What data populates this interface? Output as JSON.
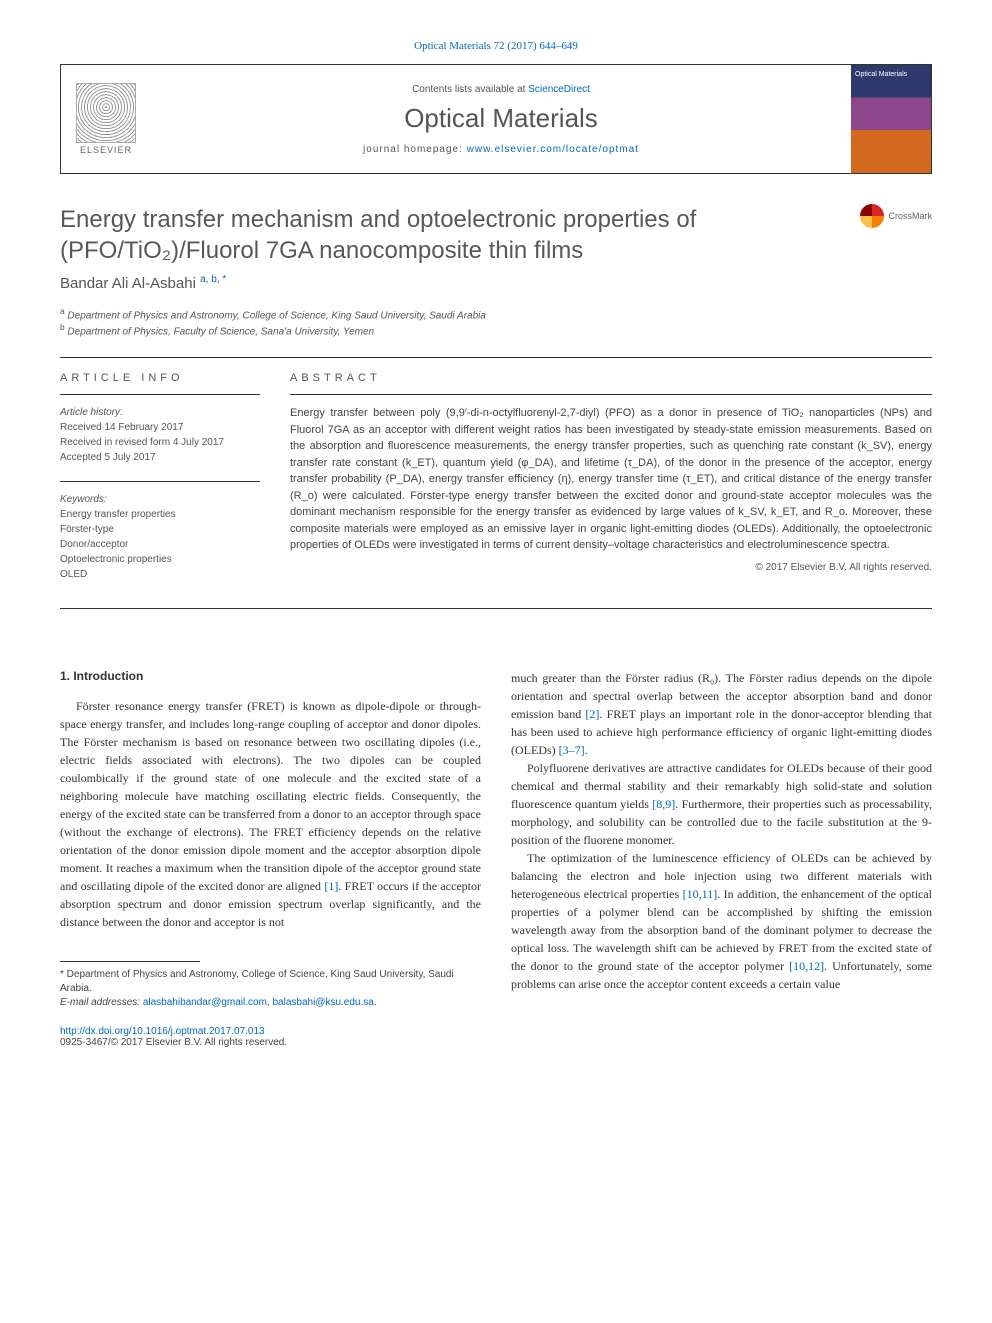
{
  "journalRef": {
    "text": "Optical Materials 72 (2017) 644–649",
    "href": "#"
  },
  "header": {
    "contents_prefix": "Contents lists available at ",
    "contents_link": "ScienceDirect",
    "journal_name": "Optical Materials",
    "homepage_prefix": "journal homepage: ",
    "homepage_link": "www.elsevier.com/locate/optmat",
    "elsevier_label": "ELSEVIER"
  },
  "title": "Energy transfer mechanism and optoelectronic properties of (PFO/TiO₂)/Fluorol 7GA nanocomposite thin films",
  "crossmark_label": "CrossMark",
  "author": {
    "name": "Bandar Ali Al-Asbahi",
    "marks": "a, b, *"
  },
  "affiliations": [
    {
      "mark": "a",
      "text": "Department of Physics and Astronomy, College of Science, King Saud University, Saudi Arabia"
    },
    {
      "mark": "b",
      "text": "Department of Physics, Faculty of Science, Sana'a University, Yemen"
    }
  ],
  "articleInfo": {
    "heading": "article info",
    "history_label": "Article history:",
    "received": "Received 14 February 2017",
    "revised": "Received in revised form 4 July 2017",
    "accepted": "Accepted 5 July 2017",
    "keywords_label": "Keywords:",
    "keywords": [
      "Energy transfer properties",
      "Förster-type",
      "Donor/acceptor",
      "Optoelectronic properties",
      "OLED"
    ]
  },
  "abstract": {
    "heading": "abstract",
    "text": "Energy transfer between poly (9,9′-di-n-octylfluorenyl-2,7-diyl) (PFO) as a donor in presence of TiO₂ nanoparticles (NPs) and Fluorol 7GA as an acceptor with different weight ratios has been investigated by steady-state emission measurements. Based on the absorption and fluorescence measurements, the energy transfer properties, such as quenching rate constant (k_SV), energy transfer rate constant (k_ET), quantum yield (φ_DA), and lifetime (τ_DA), of the donor in the presence of the acceptor, energy transfer probability (P_DA), energy transfer efficiency (η), energy transfer time (τ_ET), and critical distance of the energy transfer (R_o) were calculated. Förster-type energy transfer between the excited donor and ground-state acceptor molecules was the dominant mechanism responsible for the energy transfer as evidenced by large values of k_SV, k_ET, and R_o. Moreover, these composite materials were employed as an emissive layer in organic light-emitting diodes (OLEDs). Additionally, the optoelectronic properties of OLEDs were investigated in terms of current density–voltage characteristics and electroluminescence spectra.",
    "copyright": "© 2017 Elsevier B.V. All rights reserved."
  },
  "intro": {
    "heading": "1. Introduction",
    "col1_p1": "Förster resonance energy transfer (FRET) is known as dipole-dipole or through-space energy transfer, and includes long-range coupling of acceptor and donor dipoles. The Förster mechanism is based on resonance between two oscillating dipoles (i.e., electric fields associated with electrons). The two dipoles can be coupled coulombically if the ground state of one molecule and the excited state of a neighboring molecule have matching oscillating electric fields. Consequently, the energy of the excited state can be transferred from a donor to an acceptor through space (without the exchange of electrons). The FRET efficiency depends on the relative orientation of the donor emission dipole moment and the acceptor absorption dipole moment. It reaches a maximum when the transition dipole of the acceptor ground state and oscillating dipole of the excited donor are aligned ",
    "col1_ref1": "[1]",
    "col1_p1_tail": ". FRET occurs if the acceptor absorption spectrum and donor emission spectrum overlap significantly, and the distance between the donor and acceptor is not",
    "col2_p1": "much greater than the Förster radius (R₀). The Förster radius depends on the dipole orientation and spectral overlap between the acceptor absorption band and donor emission band ",
    "col2_ref2": "[2]",
    "col2_p1_mid": ". FRET plays an important role in the donor-acceptor blending that has been used to achieve high performance efficiency of organic light-emitting diodes (OLEDs) ",
    "col2_ref37": "[3–7]",
    "col2_p1_tail": ".",
    "col2_p2": "Polyfluorene derivatives are attractive candidates for OLEDs because of their good chemical and thermal stability and their remarkably high solid-state and solution fluorescence quantum yields ",
    "col2_ref89": "[8,9]",
    "col2_p2_tail": ". Furthermore, their properties such as processability, morphology, and solubility can be controlled due to the facile substitution at the 9-position of the fluorene monomer.",
    "col2_p3": "The optimization of the luminescence efficiency of OLEDs can be achieved by balancing the electron and hole injection using two different materials with heterogeneous electrical properties ",
    "col2_ref1011": "[10,11]",
    "col2_p3_mid": ". In addition, the enhancement of the optical properties of a polymer blend can be accomplished by shifting the emission wavelength away from the absorption band of the dominant polymer to decrease the optical loss. The wavelength shift can be achieved by FRET from the excited state of the donor to the ground state of the acceptor polymer ",
    "col2_ref1012": "[10,12]",
    "col2_p3_tail": ". Unfortunately, some problems can arise once the acceptor content exceeds a certain value"
  },
  "footnote": {
    "corr": "* Department of Physics and Astronomy, College of Science, King Saud University, Saudi Arabia.",
    "email_label": "E-mail addresses:",
    "email1": "alasbahibandar@gmail.com",
    "email2": "balasbahi@ksu.edu.sa"
  },
  "doi": {
    "link": "http://dx.doi.org/10.1016/j.optmat.2017.07.013",
    "issn_line": "0925-3467/© 2017 Elsevier B.V. All rights reserved."
  },
  "colors": {
    "link": "#0066cc",
    "text": "#3b3b3b",
    "heading_gray": "#585858"
  }
}
